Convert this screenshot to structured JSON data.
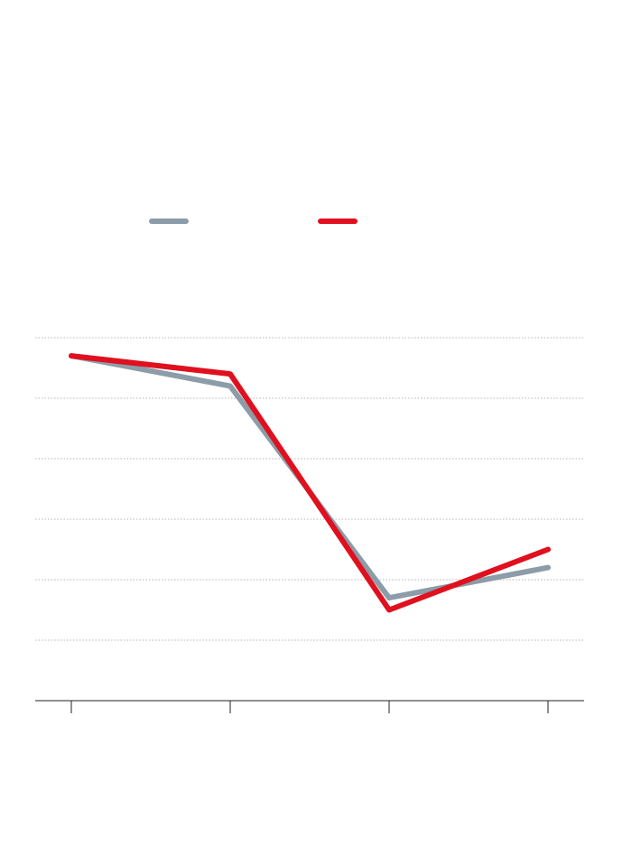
{
  "chart_data": {
    "type": "line",
    "title": "",
    "xlabel": "",
    "ylabel": "",
    "x": [
      0,
      1,
      2,
      3
    ],
    "tick_labels": [
      "",
      "",
      "",
      ""
    ],
    "ylim": [
      0,
      6
    ],
    "y_gridlines": [
      1,
      2,
      3,
      4,
      5,
      6
    ],
    "grid": true,
    "legend_position": "top",
    "series": [
      {
        "name": "",
        "color": "#8c9ca8",
        "values": [
          5.7,
          5.2,
          1.7,
          2.2
        ]
      },
      {
        "name": "",
        "color": "#e0101e",
        "values": [
          5.7,
          5.4,
          1.5,
          2.5
        ]
      }
    ]
  }
}
